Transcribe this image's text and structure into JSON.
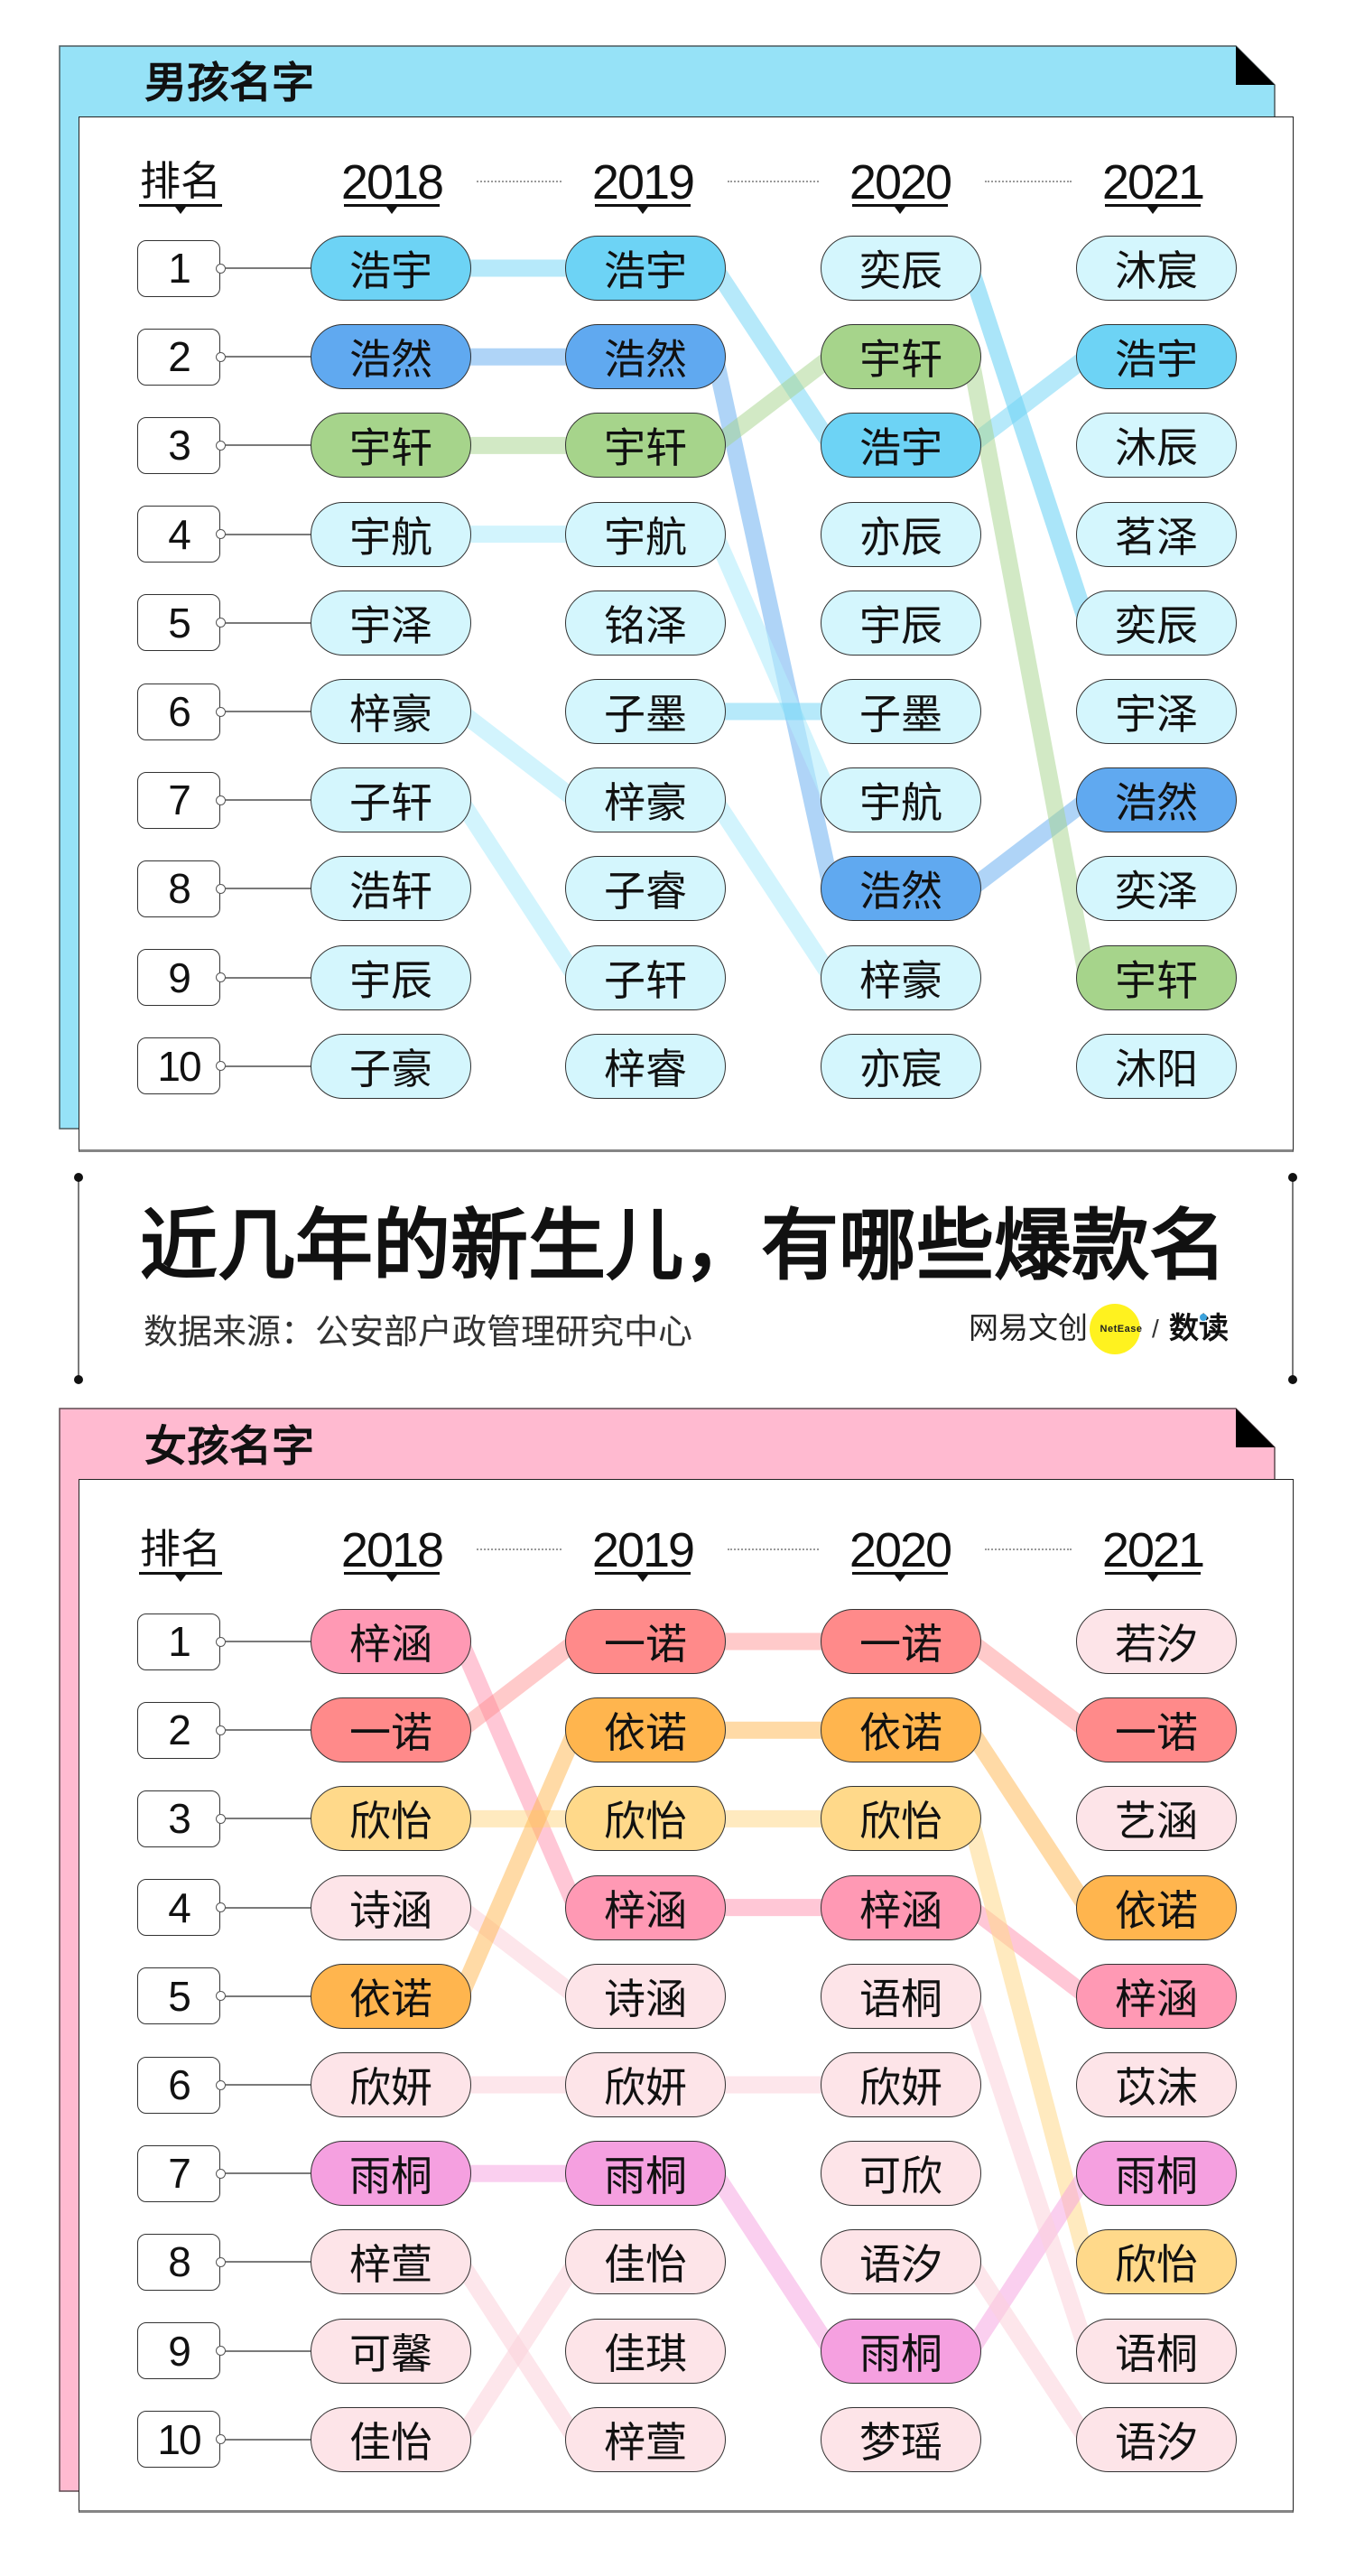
{
  "headline": {
    "title": "近几年的新生儿，有哪些爆款名",
    "source": "数据来源：公安部户政管理研究中心",
    "logo": {
      "brand": "网易文创",
      "badge": "NetEase",
      "separator": "/",
      "column": "数读",
      "badge_color": "#fff21f",
      "dot_color": "#3ba2dc"
    }
  },
  "chart_data": [
    {
      "type": "table",
      "subtype": "rank-bump",
      "title": "男孩名字",
      "theme_color": "#96e2f7",
      "columns": [
        "排名",
        "2018",
        "2019",
        "2020",
        "2021"
      ],
      "rows": [
        [
          "1",
          "浩宇",
          "浩宇",
          "奕辰",
          "沐宸"
        ],
        [
          "2",
          "浩然",
          "浩然",
          "宇轩",
          "浩宇"
        ],
        [
          "3",
          "宇轩",
          "宇轩",
          "浩宇",
          "沐辰"
        ],
        [
          "4",
          "宇航",
          "宇航",
          "亦辰",
          "茗泽"
        ],
        [
          "5",
          "宇泽",
          "铭泽",
          "宇辰",
          "奕辰"
        ],
        [
          "6",
          "梓豪",
          "子墨",
          "子墨",
          "宇泽"
        ],
        [
          "7",
          "子轩",
          "梓豪",
          "宇航",
          "浩然"
        ],
        [
          "8",
          "浩轩",
          "子睿",
          "浩然",
          "奕泽"
        ],
        [
          "9",
          "宇辰",
          "子轩",
          "梓豪",
          "宇轩"
        ],
        [
          "10",
          "子豪",
          "梓睿",
          "亦宸",
          "沐阳"
        ]
      ],
      "highlight_colors": {
        "浩宇": "#6dd3f5",
        "浩然": "#60a9f0",
        "宇轩": "#a6d48b"
      },
      "default_cell_color": "#d4f6fd",
      "links": [
        {
          "name": "浩宇",
          "years": [
            "2018",
            "2019",
            "2020",
            "2021"
          ],
          "ranks": [
            1,
            1,
            3,
            2
          ],
          "color": "rgba(109,211,245,0.5)"
        },
        {
          "name": "浩然",
          "years": [
            "2018",
            "2019",
            "2020",
            "2021"
          ],
          "ranks": [
            2,
            2,
            8,
            7
          ],
          "color": "rgba(96,169,240,0.5)"
        },
        {
          "name": "宇轩",
          "years": [
            "2018",
            "2019",
            "2020",
            "2021"
          ],
          "ranks": [
            3,
            3,
            2,
            9
          ],
          "color": "rgba(166,212,139,0.5)"
        },
        {
          "name": "宇航",
          "years": [
            "2018",
            "2019",
            "2020"
          ],
          "ranks": [
            4,
            4,
            7
          ],
          "color": "rgba(180,236,252,0.6)"
        },
        {
          "name": "梓豪",
          "years": [
            "2018",
            "2019",
            "2020"
          ],
          "ranks": [
            6,
            7,
            9
          ],
          "color": "rgba(180,236,252,0.6)"
        },
        {
          "name": "子轩",
          "years": [
            "2018",
            "2019"
          ],
          "ranks": [
            7,
            9
          ],
          "color": "rgba(180,236,252,0.6)"
        },
        {
          "name": "子墨",
          "years": [
            "2019",
            "2020"
          ],
          "ranks": [
            6,
            6
          ],
          "color": "rgba(109,211,245,0.5)"
        },
        {
          "name": "奕辰",
          "years": [
            "2020",
            "2021"
          ],
          "ranks": [
            1,
            5
          ],
          "color": "rgba(109,211,245,0.58)"
        }
      ]
    },
    {
      "type": "table",
      "subtype": "rank-bump",
      "title": "女孩名字",
      "theme_color": "#ffbad0",
      "columns": [
        "排名",
        "2018",
        "2019",
        "2020",
        "2021"
      ],
      "rows": [
        [
          "1",
          "梓涵",
          "一诺",
          "一诺",
          "若汐"
        ],
        [
          "2",
          "一诺",
          "依诺",
          "依诺",
          "一诺"
        ],
        [
          "3",
          "欣怡",
          "欣怡",
          "欣怡",
          "艺涵"
        ],
        [
          "4",
          "诗涵",
          "梓涵",
          "梓涵",
          "依诺"
        ],
        [
          "5",
          "依诺",
          "诗涵",
          "语桐",
          "梓涵"
        ],
        [
          "6",
          "欣妍",
          "欣妍",
          "欣妍",
          "苡沫"
        ],
        [
          "7",
          "雨桐",
          "雨桐",
          "可欣",
          "雨桐"
        ],
        [
          "8",
          "梓萱",
          "佳怡",
          "语汐",
          "欣怡"
        ],
        [
          "9",
          "可馨",
          "佳琪",
          "雨桐",
          "语桐"
        ],
        [
          "10",
          "佳怡",
          "梓萱",
          "梦瑶",
          "语汐"
        ]
      ],
      "highlight_colors": {
        "梓涵": "#ff99b4",
        "一诺": "#ff8a8a",
        "欣怡": "#ffd98a",
        "依诺": "#ffb54e",
        "雨桐": "#f5a0e0"
      },
      "default_cell_color": "#fde4e8",
      "links": [
        {
          "name": "梓涵",
          "years": [
            "2018",
            "2019",
            "2020",
            "2021"
          ],
          "ranks": [
            1,
            4,
            4,
            5
          ],
          "color": "rgba(255,153,180,0.55)"
        },
        {
          "name": "一诺",
          "years": [
            "2018",
            "2019",
            "2020",
            "2021"
          ],
          "ranks": [
            2,
            1,
            1,
            2
          ],
          "color": "rgba(255,138,138,0.45)"
        },
        {
          "name": "欣怡",
          "years": [
            "2018",
            "2019",
            "2020",
            "2021"
          ],
          "ranks": [
            3,
            3,
            3,
            8
          ],
          "color": "rgba(255,217,138,0.55)"
        },
        {
          "name": "诗涵",
          "years": [
            "2018",
            "2019"
          ],
          "ranks": [
            4,
            5
          ],
          "color": "rgba(252,210,218,0.55)"
        },
        {
          "name": "依诺",
          "years": [
            "2018",
            "2019",
            "2020",
            "2021"
          ],
          "ranks": [
            5,
            2,
            2,
            4
          ],
          "color": "rgba(255,181,78,0.5)"
        },
        {
          "name": "欣妍",
          "years": [
            "2018",
            "2019",
            "2020"
          ],
          "ranks": [
            6,
            6,
            6
          ],
          "color": "rgba(252,210,218,0.55)"
        },
        {
          "name": "雨桐",
          "years": [
            "2018",
            "2019",
            "2020",
            "2021"
          ],
          "ranks": [
            7,
            7,
            9,
            7
          ],
          "color": "rgba(245,160,224,0.5)"
        },
        {
          "name": "梓萱",
          "years": [
            "2018",
            "2019"
          ],
          "ranks": [
            8,
            10
          ],
          "color": "rgba(252,210,218,0.55)"
        },
        {
          "name": "佳怡",
          "years": [
            "2018",
            "2019"
          ],
          "ranks": [
            10,
            8
          ],
          "color": "rgba(252,210,218,0.55)"
        },
        {
          "name": "语桐",
          "years": [
            "2020",
            "2021"
          ],
          "ranks": [
            5,
            9
          ],
          "color": "rgba(252,210,218,0.55)"
        },
        {
          "name": "语汐",
          "years": [
            "2020",
            "2021"
          ],
          "ranks": [
            8,
            10
          ],
          "color": "rgba(252,210,218,0.55)"
        }
      ]
    }
  ]
}
